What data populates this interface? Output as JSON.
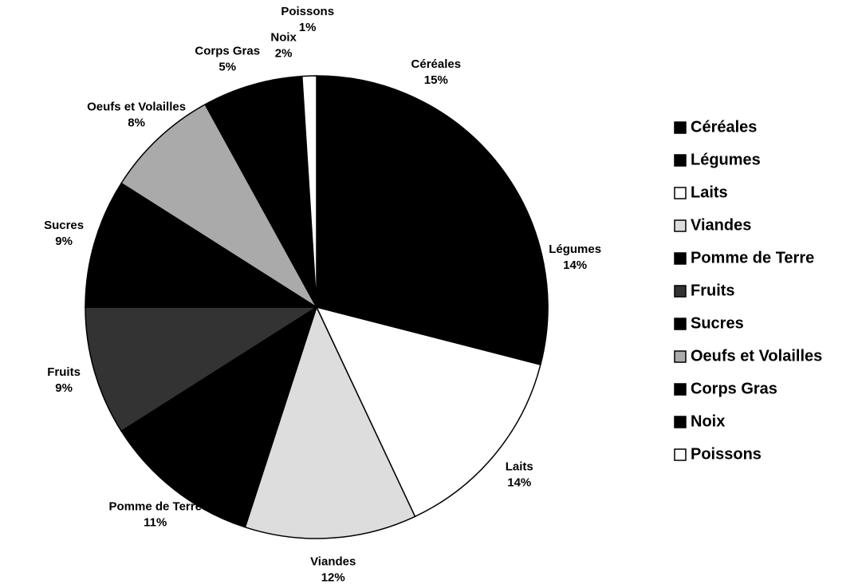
{
  "chart_data": {
    "type": "pie",
    "categories": [
      "Céréales",
      "Légumes",
      "Laits",
      "Viandes",
      "Pomme de Terre",
      "Fruits",
      "Sucres",
      "Oeufs et Volailles",
      "Corps Gras",
      "Noix",
      "Poissons"
    ],
    "values": [
      15,
      14,
      14,
      12,
      11,
      9,
      9,
      8,
      5,
      2,
      1
    ],
    "value_labels": [
      "15%",
      "14%",
      "14%",
      "12%",
      "11%",
      "9%",
      "9%",
      "8%",
      "5%",
      "2%",
      "1%"
    ],
    "colors": [
      "#000000",
      "#000000",
      "#ffffff",
      "#dddddd",
      "#000000",
      "#333333",
      "#000000",
      "#aaaaaa",
      "#000000",
      "#000000",
      "#ffffff"
    ],
    "legend": "right"
  }
}
